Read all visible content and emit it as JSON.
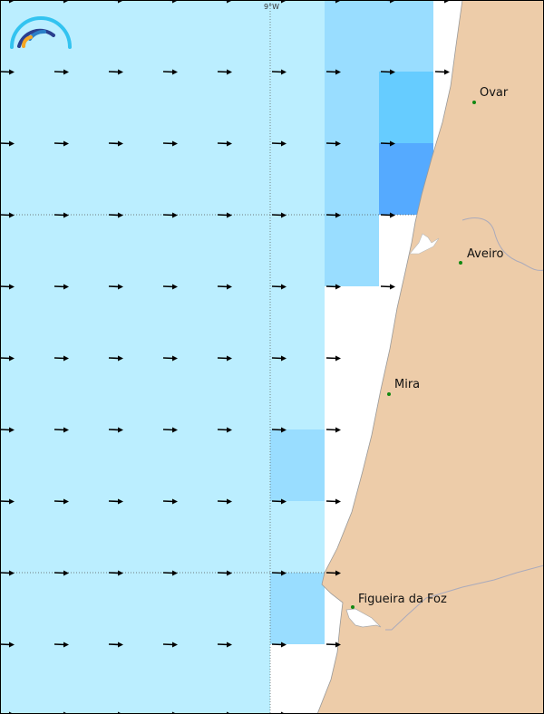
{
  "map": {
    "grid_label_lon": "9°W",
    "cities": [
      {
        "name": "Ovar"
      },
      {
        "name": "Aveiro"
      },
      {
        "name": "Mira"
      },
      {
        "name": "Figueira da Foz"
      }
    ],
    "vector_direction": "east",
    "colors": {
      "sea_level_1": "#bbeeff",
      "sea_level_2": "#99ddff",
      "sea_level_3": "#66ccff",
      "sea_level_4": "#55aaff",
      "land": "#edcca9",
      "city_dot": "#118811",
      "arrow": "#000000"
    }
  }
}
